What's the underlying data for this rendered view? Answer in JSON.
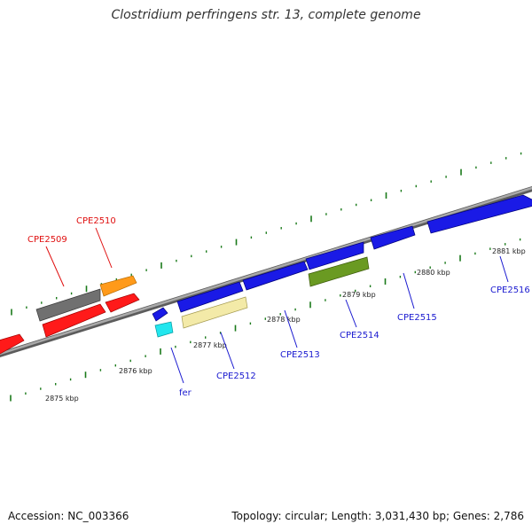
{
  "title": "Clostridium perfringens str. 13, complete genome",
  "footer": {
    "accession": "Accession: NC_003366",
    "summary": "Topology: circular; Length: 3,031,430 bp; Genes: 2,786"
  },
  "scale_labels": [
    "2875 kbp",
    "2876 kbp",
    "2877 kbp",
    "2878 kbp",
    "2879 kbp",
    "2880 kbp",
    "2881 kbp"
  ],
  "genes": [
    {
      "name": "CPE2509",
      "color": "#000000"
    },
    {
      "name": "CPE2510",
      "color": "#000000"
    },
    {
      "name": "fer",
      "color": "#000000"
    },
    {
      "name": "CPE2512",
      "color": "#000000"
    },
    {
      "name": "CPE2513",
      "color": "#000000"
    },
    {
      "name": "CPE2514",
      "color": "#000000"
    },
    {
      "name": "CPE2515",
      "color": "#000000"
    },
    {
      "name": "CPE2516",
      "color": "#000000"
    }
  ],
  "colors": {
    "backbone": "#8c8c8c",
    "tick": "#1a7a1a",
    "label_red": "#e01010",
    "label_blue": "#1a1ad0",
    "red": "#ff1a1a",
    "orange": "#ff9a1a",
    "gray": "#707070",
    "blue": "#1a1ae6",
    "cyan": "#22e6ee",
    "khaki": "#f3eaa8",
    "olive": "#6a9a22"
  }
}
